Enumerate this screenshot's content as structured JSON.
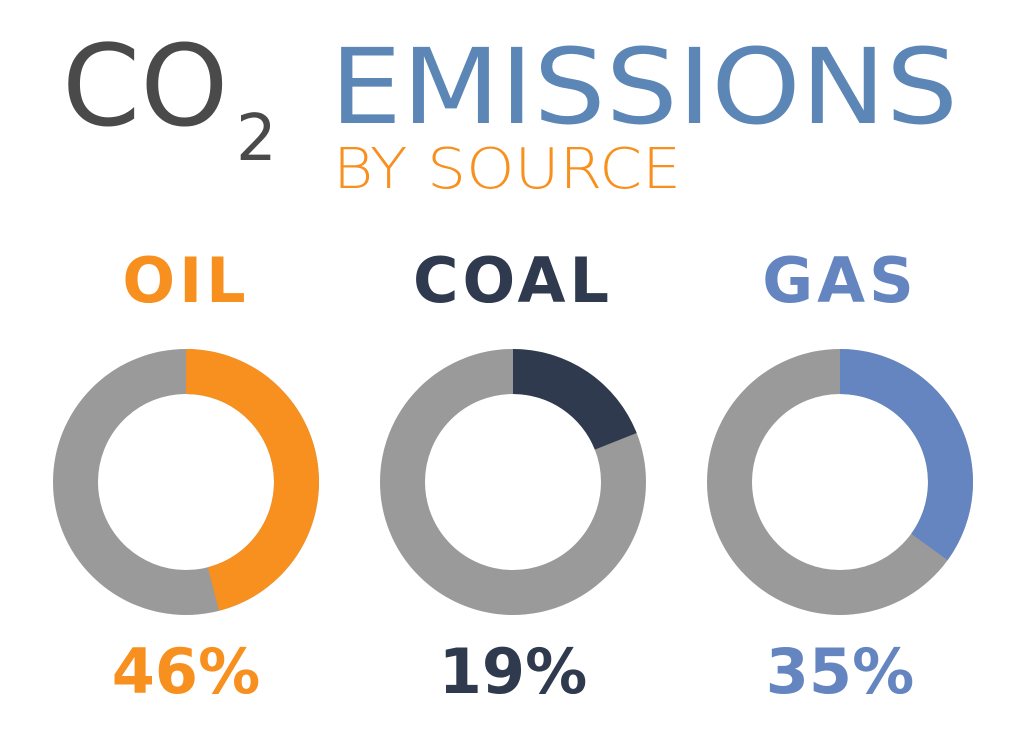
{
  "header": {
    "co": "CO",
    "sub": "2",
    "title": "EMISSIONS",
    "subtitle": "BY SOURCE"
  },
  "chart_data": [
    {
      "type": "pie",
      "title": "OIL",
      "values": [
        46
      ],
      "value_labels": [
        "46%"
      ],
      "color": "#f7901e"
    },
    {
      "type": "pie",
      "title": "COAL",
      "values": [
        19
      ],
      "value_labels": [
        "19%"
      ],
      "color": "#2f3a4f"
    },
    {
      "type": "pie",
      "title": "GAS",
      "values": [
        35
      ],
      "value_labels": [
        "35%"
      ],
      "color": "#6485c0"
    }
  ]
}
